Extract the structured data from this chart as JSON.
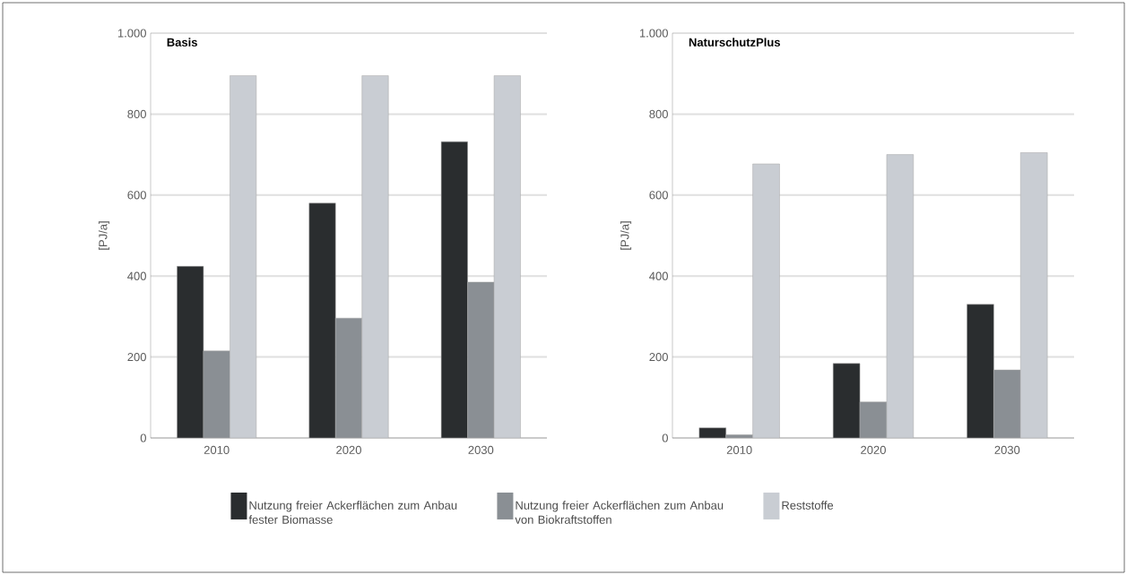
{
  "chart_data": [
    {
      "type": "bar",
      "title": "Basis",
      "ylabel": "[PJ/a]",
      "categories": [
        "2010",
        "2020",
        "2030"
      ],
      "series": [
        {
          "name": "Nutzung freier Ackerflächen zum Anbau fester Biomasse",
          "color": "#2a2d2f",
          "values": [
            424,
            580,
            732
          ]
        },
        {
          "name": "Nutzung freier Ackerflächen zum Anbau von Biokraftstoffen",
          "color": "#8a8f94",
          "values": [
            215,
            296,
            385
          ]
        },
        {
          "name": "Reststoffe",
          "color": "#c9cdd3",
          "values": [
            895,
            895,
            895
          ]
        }
      ],
      "ylim": [
        0,
        1000
      ],
      "yticks": [
        0,
        200,
        400,
        600,
        800,
        {
          "value": 1000,
          "label": "1.000"
        }
      ],
      "grid": "y",
      "legend": "bottom"
    },
    {
      "type": "bar",
      "title": "NaturschutzPlus",
      "ylabel": "[PJ/a]",
      "categories": [
        "2010",
        "2020",
        "2030"
      ],
      "series": [
        {
          "color": "#2a2d2f",
          "values": [
            25,
            184,
            330
          ]
        },
        {
          "color": "#8a8f94",
          "values": [
            8,
            89,
            168
          ]
        },
        {
          "color": "#c9cdd3",
          "values": [
            677,
            700,
            705
          ]
        }
      ],
      "ylim": [
        0,
        1000
      ],
      "yticks": [
        0,
        200,
        400,
        600,
        800,
        {
          "value": 1000,
          "label": "1.000"
        }
      ],
      "grid": "y"
    }
  ]
}
